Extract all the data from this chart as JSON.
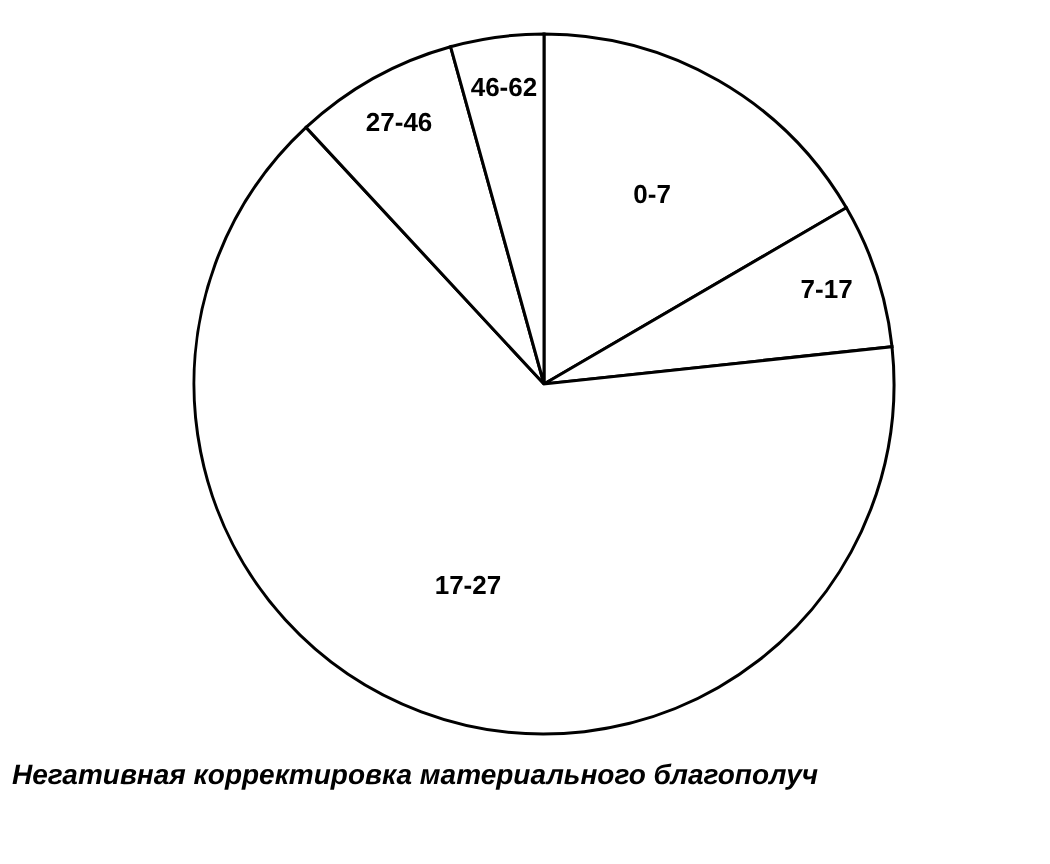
{
  "chart_data": {
    "type": "pie",
    "title": "Негативная корректировка материального благополуч",
    "categories": [
      "0-7",
      "7-17",
      "17-27",
      "27-46",
      "46-62"
    ],
    "values": [
      16.6,
      6.7,
      64.8,
      7.6,
      4.3
    ],
    "colors": [
      "#ffffff",
      "#ffffff",
      "#ffffff",
      "#ffffff",
      "#ffffff"
    ]
  }
}
